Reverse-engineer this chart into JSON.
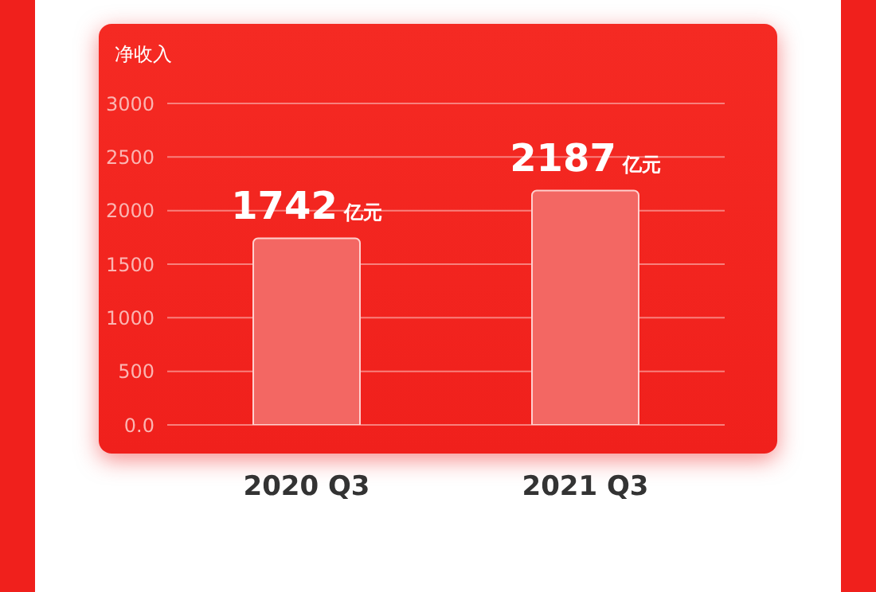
{
  "chart_data": {
    "type": "bar",
    "ylabel": "净收入",
    "categories": [
      "2020 Q3",
      "2021 Q3"
    ],
    "values": [
      1742,
      2187
    ],
    "color": "#f36763",
    "value_labels": [
      "1742 亿元",
      "2187 亿元"
    ],
    "ylim": [
      0,
      3000
    ],
    "yticks": [
      {
        "value": 0,
        "label": "0.0"
      },
      500,
      1000,
      1500,
      2000,
      2500,
      3000
    ],
    "grid": "y"
  }
}
